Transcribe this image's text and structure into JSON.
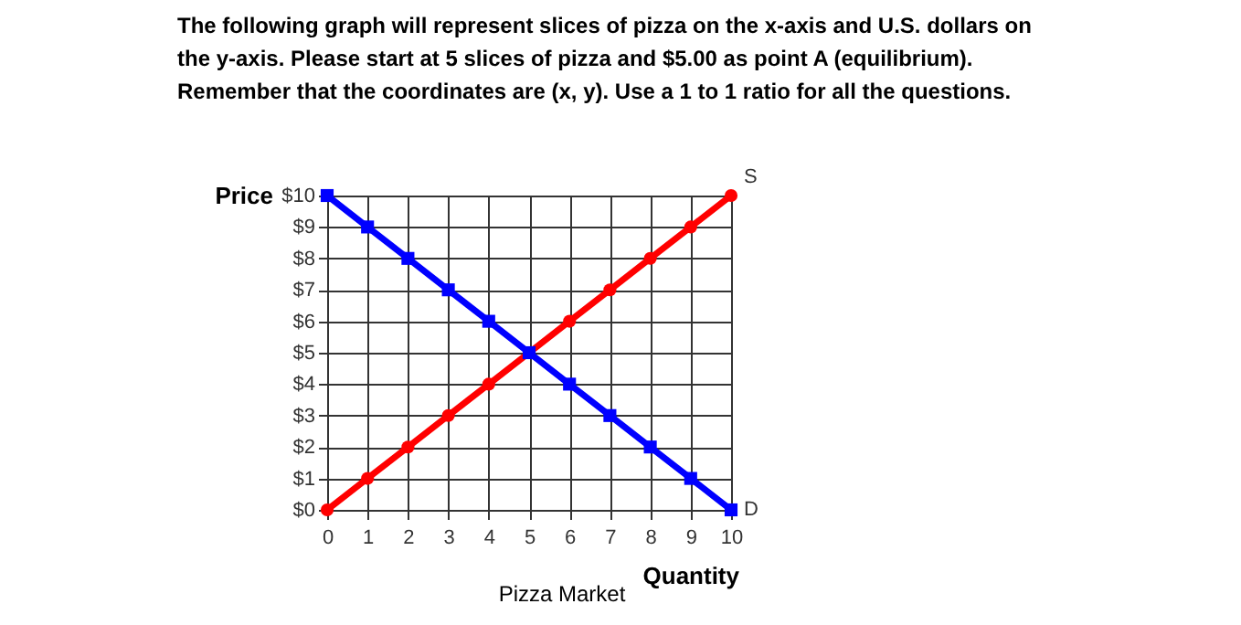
{
  "chart_data": {
    "type": "line",
    "title": "The following graph will represent slices of pizza on the x-axis and U.S. dollars on the y-axis. Please start at 5 slices of pizza and $5.00 as point A (equilibrium). Remember that the coordinates are (x, y). Use a 1 to 1 ratio for all the questions.",
    "xlabel": "Quantity",
    "ylabel": "Price",
    "x": [
      0,
      1,
      2,
      3,
      4,
      5,
      6,
      7,
      8,
      9,
      10
    ],
    "series": [
      {
        "name": "S",
        "color": "#ff0000",
        "marker": "circle",
        "values": [
          0,
          1,
          2,
          3,
          4,
          5,
          6,
          7,
          8,
          9,
          10
        ]
      },
      {
        "name": "D",
        "color": "#0000ff",
        "marker": "square",
        "values": [
          10,
          9,
          8,
          7,
          6,
          5,
          4,
          3,
          2,
          1,
          0
        ]
      }
    ],
    "xlim": [
      0,
      10
    ],
    "xticks": [
      0,
      1,
      2,
      3,
      4,
      5,
      6,
      7,
      8,
      9,
      10
    ],
    "ylim": [
      0,
      10
    ],
    "yticks": [
      {
        "value": 0,
        "label": "$0"
      },
      {
        "value": 1,
        "label": "$1"
      },
      {
        "value": 2,
        "label": "$2"
      },
      {
        "value": 3,
        "label": "$3"
      },
      {
        "value": 4,
        "label": "$4"
      },
      {
        "value": 5,
        "label": "$5"
      },
      {
        "value": 6,
        "label": "$6"
      },
      {
        "value": 7,
        "label": "$7"
      },
      {
        "value": 8,
        "label": "$8"
      },
      {
        "value": 9,
        "label": "$9"
      },
      {
        "value": 10,
        "label": "$10"
      }
    ],
    "grid": true,
    "legend": false,
    "line_style": "solid",
    "annotations": [
      "Pizza Market"
    ]
  }
}
